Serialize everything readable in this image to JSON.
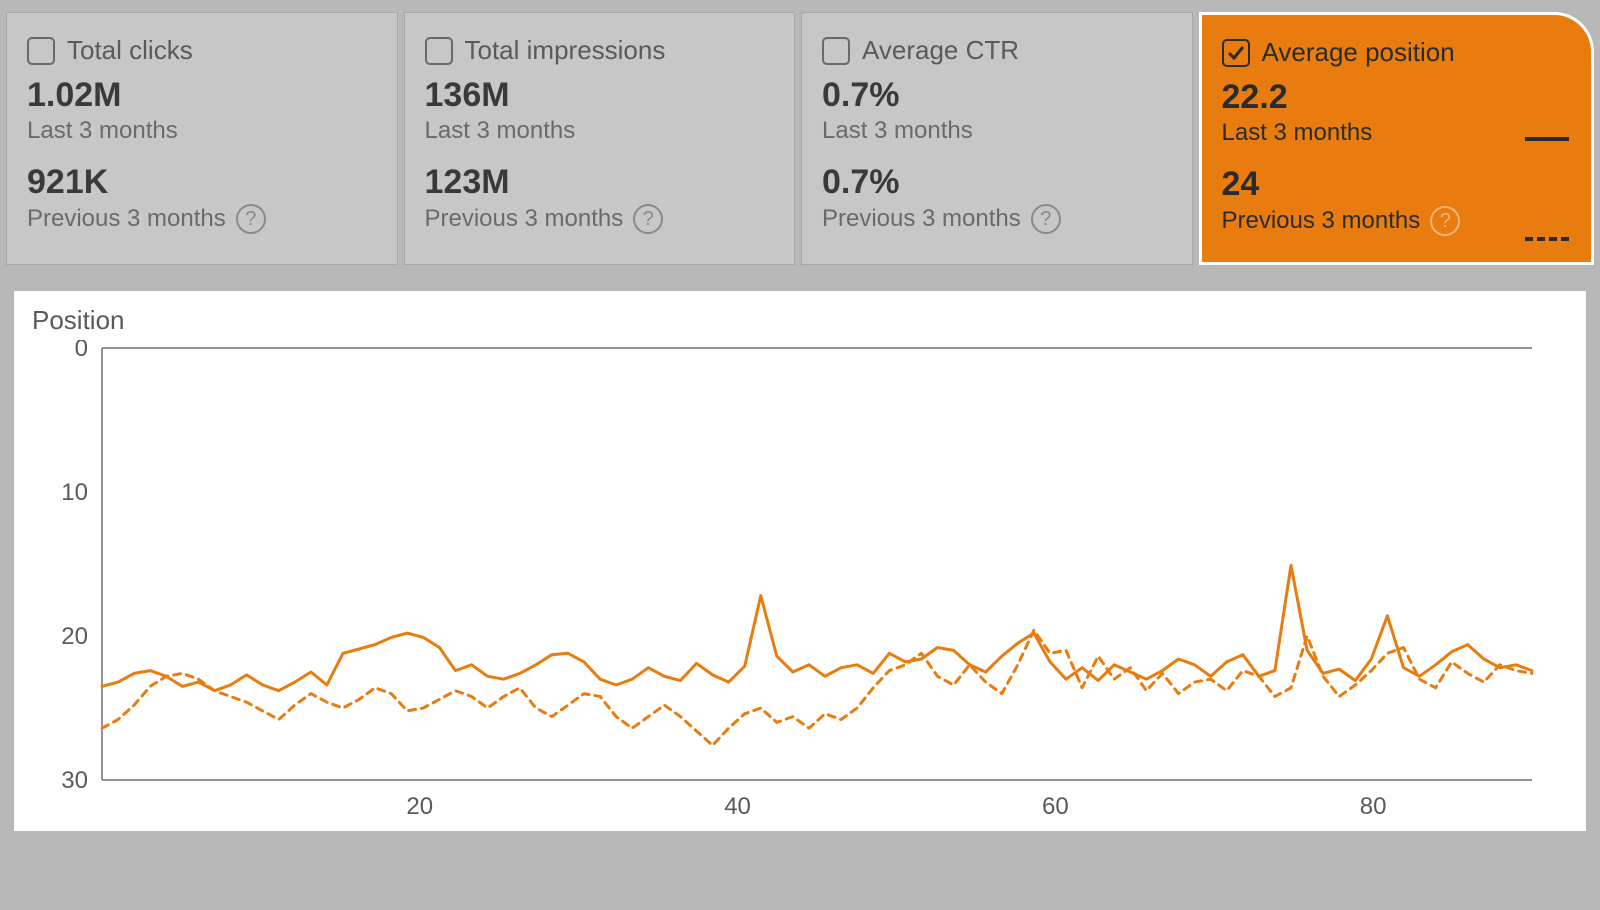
{
  "metrics": [
    {
      "key": "clicks",
      "title": "Total clicks",
      "value_current": "1.02M",
      "period_current": "Last 3 months",
      "value_previous": "921K",
      "period_previous": "Previous 3 months",
      "selected": false
    },
    {
      "key": "impressions",
      "title": "Total impressions",
      "value_current": "136M",
      "period_current": "Last 3 months",
      "value_previous": "123M",
      "period_previous": "Previous 3 months",
      "selected": false
    },
    {
      "key": "ctr",
      "title": "Average CTR",
      "value_current": "0.7%",
      "period_current": "Last 3 months",
      "value_previous": "0.7%",
      "period_previous": "Previous 3 months",
      "selected": false
    },
    {
      "key": "position",
      "title": "Average position",
      "value_current": "22.2",
      "period_current": "Last 3 months",
      "value_previous": "24",
      "period_previous": "Previous 3 months",
      "selected": true
    }
  ],
  "chart": {
    "type": "line",
    "ylabel": "Position",
    "ylim": [
      0,
      30
    ],
    "yticks": [
      0,
      10,
      20,
      30
    ],
    "xlim": [
      0,
      90
    ],
    "xticks": [
      20,
      40,
      60,
      80
    ],
    "y_inverted": true,
    "background_color": "#ffffff",
    "axis_color": "#707070",
    "label_color": "#5a5a5a",
    "label_fontsize": 24,
    "line_width_solid": 3,
    "line_width_dashed": 3,
    "dash_pattern": "7,6",
    "series": [
      {
        "name": "Last 3 months",
        "style": "solid",
        "color": "#e87c0f",
        "values": [
          23.5,
          23.2,
          22.6,
          22.4,
          22.8,
          23.5,
          23.2,
          23.8,
          23.4,
          22.7,
          23.4,
          23.8,
          23.2,
          22.5,
          23.4,
          21.2,
          20.9,
          20.6,
          20.1,
          19.8,
          20.1,
          20.8,
          22.4,
          22.0,
          22.8,
          23.0,
          22.6,
          22.0,
          21.3,
          21.2,
          21.8,
          23.0,
          23.4,
          23.0,
          22.2,
          22.8,
          23.1,
          21.9,
          22.7,
          23.2,
          22.1,
          17.2,
          21.4,
          22.5,
          22.0,
          22.8,
          22.2,
          22.0,
          22.6,
          21.2,
          21.8,
          21.6,
          20.8,
          21.0,
          22.0,
          22.5,
          21.4,
          20.5,
          19.8,
          21.8,
          23.0,
          22.2,
          23.1,
          22.0,
          22.5,
          23.0,
          22.4,
          21.6,
          22.0,
          22.8,
          21.8,
          21.3,
          22.8,
          22.4,
          15.1,
          21.0,
          22.6,
          22.3,
          23.1,
          21.6,
          18.6,
          22.2,
          22.8,
          22.0,
          21.1,
          20.6,
          21.6,
          22.2,
          22.0,
          22.4
        ]
      },
      {
        "name": "Previous 3 months",
        "style": "dashed",
        "color": "#e87c0f",
        "values": [
          26.4,
          25.8,
          24.8,
          23.5,
          22.8,
          22.6,
          23.0,
          23.8,
          24.2,
          24.6,
          25.2,
          25.8,
          24.8,
          24.0,
          24.6,
          25.0,
          24.4,
          23.6,
          24.0,
          25.2,
          25.0,
          24.4,
          23.8,
          24.2,
          25.0,
          24.2,
          23.6,
          25.0,
          25.6,
          24.8,
          24.0,
          24.2,
          25.6,
          26.4,
          25.6,
          24.8,
          25.6,
          26.6,
          27.6,
          26.4,
          25.4,
          25.0,
          26.0,
          25.6,
          26.4,
          25.4,
          25.8,
          25.0,
          23.6,
          22.4,
          22.0,
          21.2,
          22.8,
          23.4,
          22.0,
          23.2,
          24.0,
          22.0,
          19.6,
          21.2,
          21.0,
          23.6,
          21.4,
          23.0,
          22.2,
          23.8,
          22.6,
          24.0,
          23.2,
          23.0,
          23.8,
          22.4,
          22.8,
          24.2,
          23.6,
          20.0,
          22.8,
          24.2,
          23.4,
          22.4,
          21.2,
          20.8,
          23.0,
          23.6,
          21.8,
          22.6,
          23.2,
          22.0,
          22.4,
          22.6
        ]
      }
    ]
  },
  "colors": {
    "page_bg": "#b8b8b8",
    "card_bg": "#c7c7c7",
    "card_selected_bg": "#e87c0f",
    "text_muted": "#6a6a6a",
    "text_strong": "#3a3a3a"
  }
}
